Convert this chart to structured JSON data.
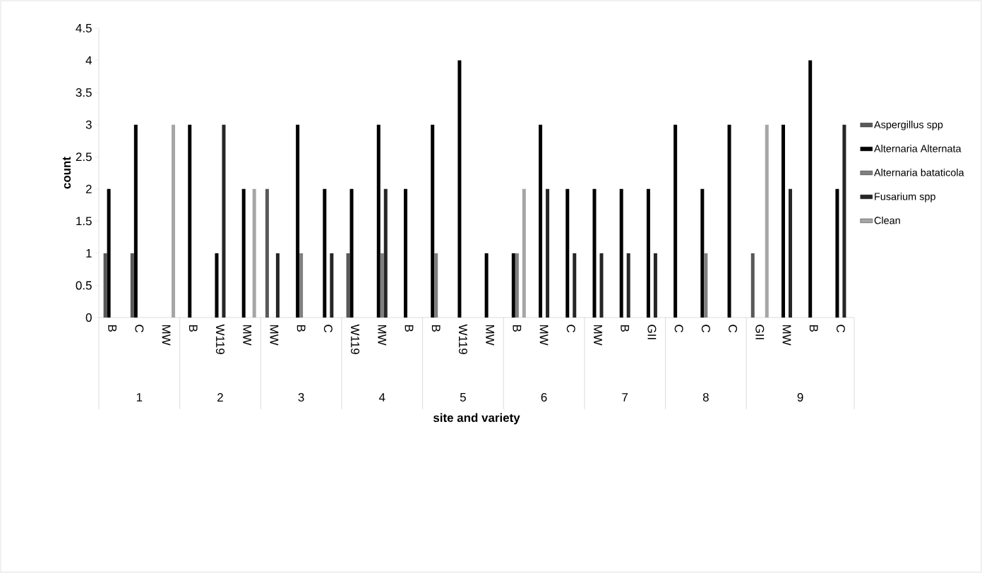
{
  "chart_data": {
    "type": "bar",
    "xlabel": "site and variety",
    "ylabel": "count",
    "categories": [
      "B",
      "C",
      "MW",
      "B",
      "W119",
      "MW",
      "MW",
      "B",
      "C",
      "W119",
      "MW",
      "B",
      "B",
      "W119",
      "MW",
      "B",
      "MW",
      "C",
      "MW",
      "B",
      "GII",
      "C",
      "C",
      "C",
      "GII",
      "MW",
      "B",
      "C"
    ],
    "series": [
      {
        "name": "Aspergillus spp",
        "color": "#595959",
        "values": [
          1,
          1,
          0,
          0,
          0,
          0,
          2,
          0,
          0,
          1,
          0,
          0,
          0,
          0,
          0,
          0,
          0,
          0,
          0,
          0,
          0,
          0,
          0,
          0,
          1,
          0,
          0,
          0
        ]
      },
      {
        "name": "Alternaria Alternata",
        "color": "#000000",
        "values": [
          2,
          3,
          0,
          3,
          1,
          2,
          0,
          3,
          2,
          2,
          3,
          2,
          3,
          4,
          1,
          1,
          3,
          2,
          2,
          2,
          2,
          3,
          2,
          3,
          0,
          3,
          4,
          2
        ]
      },
      {
        "name": "Alternaria bataticola",
        "color": "#7f7f7f",
        "values": [
          0,
          0,
          0,
          0,
          0,
          0,
          0,
          1,
          0,
          0,
          1,
          0,
          1,
          0,
          0,
          1,
          0,
          0,
          0,
          0,
          0,
          0,
          1,
          0,
          0,
          0,
          0,
          0
        ]
      },
      {
        "name": "Fusarium spp",
        "color": "#262626",
        "values": [
          0,
          0,
          0,
          0,
          3,
          0,
          1,
          0,
          1,
          0,
          2,
          0,
          0,
          0,
          0,
          0,
          2,
          1,
          1,
          1,
          1,
          0,
          0,
          0,
          0,
          2,
          0,
          3
        ]
      },
      {
        "name": "Clean",
        "color": "#a6a6a6",
        "values": [
          0,
          0,
          3,
          0,
          0,
          2,
          0,
          0,
          0,
          0,
          0,
          0,
          0,
          0,
          0,
          2,
          0,
          0,
          0,
          0,
          0,
          0,
          0,
          0,
          3,
          0,
          0,
          0
        ]
      }
    ],
    "annotations": [
      "1",
      "2",
      "3",
      "4",
      "5",
      "6",
      "7",
      "8",
      "9"
    ],
    "ylim": [
      0,
      4.5
    ],
    "yticks": [
      0,
      0.5,
      1,
      1.5,
      2,
      2.5,
      3,
      3.5,
      4,
      4.5
    ],
    "grid": false,
    "legend": "right"
  }
}
